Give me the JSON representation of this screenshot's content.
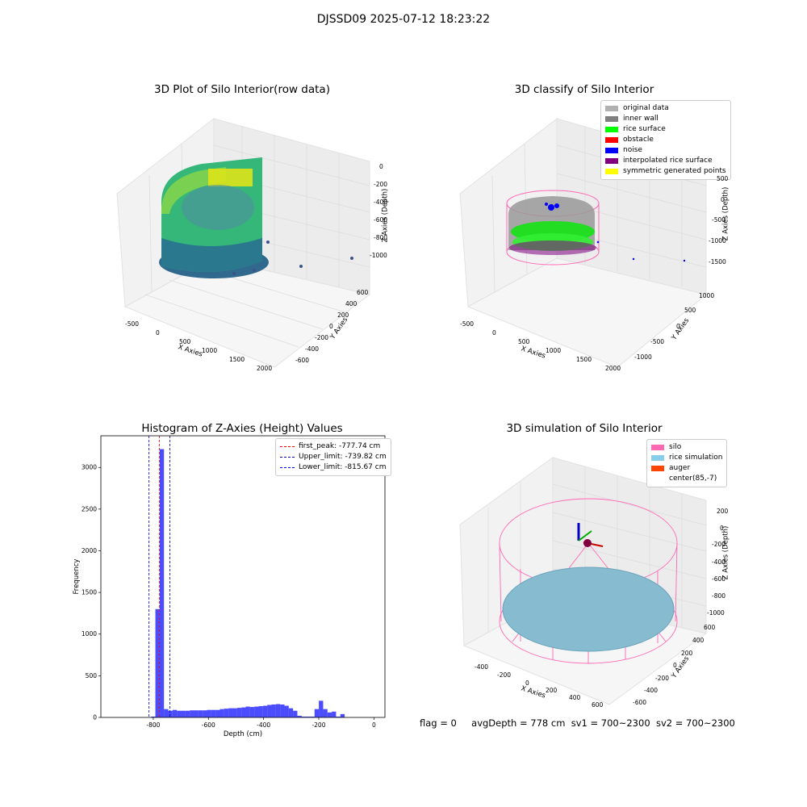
{
  "figure": {
    "suptitle": "DJSSD09 2025-07-12 18:23:22"
  },
  "panels": {
    "raw": {
      "title": "3D Plot of Silo Interior(row data)",
      "xlabel": "X Axies",
      "ylabel": "Y Axies",
      "zlabel": "Z Axies (Depth)",
      "xticks": [
        "-500",
        "0",
        "500",
        "1000",
        "1500",
        "2000"
      ],
      "yticks": [
        "-600",
        "-400",
        "-200",
        "0",
        "200",
        "400",
        "600"
      ],
      "zticks": [
        "0",
        "-200",
        "-400",
        "-600",
        "-800",
        "-1000"
      ],
      "colormap": "viridis"
    },
    "classify": {
      "title": "3D classify of Silo Interior",
      "xlabel": "X Axies",
      "ylabel": "Y Axies",
      "zlabel": "Z Axies (Depth)",
      "xticks": [
        "-500",
        "0",
        "500",
        "1000",
        "1500",
        "2000"
      ],
      "yticks": [
        "-1000",
        "-500",
        "0",
        "500",
        "1000"
      ],
      "zticks": [
        "500",
        "0",
        "-500",
        "-1000",
        "-1500"
      ],
      "legend": [
        {
          "label": "original data",
          "color": "#b0b0b0"
        },
        {
          "label": "inner wall",
          "color": "#808080"
        },
        {
          "label": "rice surface",
          "color": "#00ff00"
        },
        {
          "label": "obstacle",
          "color": "#ff0000"
        },
        {
          "label": "noise",
          "color": "#0000ff"
        },
        {
          "label": "interpolated rice surface",
          "color": "#800080"
        },
        {
          "label": "symmetric generated points",
          "color": "#ffff00"
        }
      ]
    },
    "simulation": {
      "title": "3D simulation of Silo Interior",
      "xlabel": "X Axies",
      "ylabel": "Y Axies",
      "zlabel": "Z Axies (Depth)",
      "xticks": [
        "-400",
        "-200",
        "0",
        "200",
        "400",
        "600"
      ],
      "yticks": [
        "-600",
        "-400",
        "-200",
        "0",
        "200",
        "400",
        "600"
      ],
      "zticks": [
        "200",
        "0",
        "-200",
        "-400",
        "-600",
        "-800",
        "-1000"
      ],
      "legend": [
        {
          "label": "silo",
          "color": "#ff69b4"
        },
        {
          "label": "rice simulation",
          "color": "#87ceeb"
        },
        {
          "label": "auger",
          "color": "#ff4500"
        },
        {
          "label": "center(85,-7)",
          "color": "#ffffff"
        }
      ]
    }
  },
  "footer": {
    "flag": "flag = 0",
    "avg_depth": "avgDepth = 778 cm",
    "sv1": "sv1 = 700~2300",
    "sv2": "sv2 = 700~2300"
  },
  "chart_data": [
    {
      "type": "bar",
      "title": "Histogram of Z-Axies (Height) Values",
      "xlabel": "Depth (cm)",
      "ylabel": "Frequency",
      "xlim": [
        -990,
        40
      ],
      "ylim": [
        0,
        3380
      ],
      "xticks": [
        -800,
        -600,
        -400,
        -200,
        0
      ],
      "yticks": [
        0,
        500,
        1000,
        1500,
        2000,
        2500,
        3000
      ],
      "bin_width": 15.6,
      "bin_start": -808,
      "color": "#0000ff",
      "values": [
        10,
        1300,
        3220,
        100,
        80,
        90,
        80,
        80,
        80,
        85,
        85,
        85,
        85,
        90,
        90,
        90,
        100,
        105,
        110,
        110,
        115,
        120,
        130,
        125,
        130,
        135,
        140,
        150,
        155,
        160,
        155,
        140,
        110,
        80,
        20,
        10,
        10,
        10,
        100,
        200,
        100,
        60,
        70,
        10,
        40
      ],
      "vlines": [
        {
          "label": "first_peak: -777.74 cm",
          "x": -777.74,
          "color": "#ff0000"
        },
        {
          "label": "Upper_limit: -739.82 cm",
          "x": -739.82,
          "color": "#0000aa"
        },
        {
          "label": "Lower_limit: -815.67 cm",
          "x": -815.67,
          "color": "#0000ff"
        }
      ],
      "legend_position": "top-right"
    }
  ]
}
